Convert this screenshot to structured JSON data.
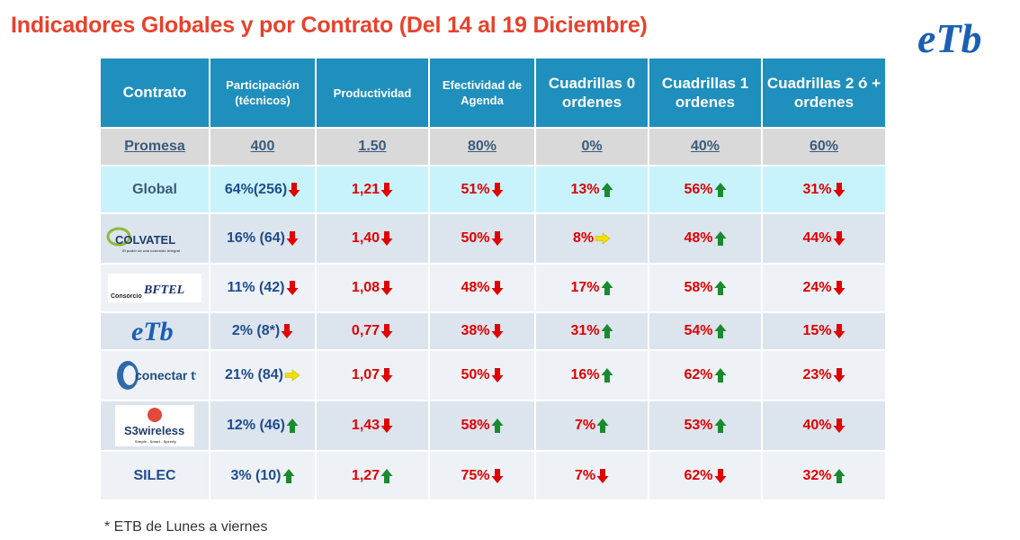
{
  "title": "Indicadores Globales y por Contrato (Del 14 al 19 Diciembre)",
  "brand_logo": "eTb",
  "headers": [
    "Contrato",
    "Participación (técnicos)",
    "Productividad",
    "Efectividad de Agenda",
    "Cuadrillas 0 ordenes",
    "Cuadrillas 1 ordenes",
    "Cuadrillas 2 ó + ordenes"
  ],
  "promesa": [
    "Promesa",
    "400",
    "1.50",
    "80%",
    "0%",
    "40%",
    "60%"
  ],
  "rows": [
    {
      "name": "Global",
      "logo": null,
      "cells": [
        {
          "v": "64%(256)",
          "a": "down"
        },
        {
          "v": "1,21",
          "a": "down"
        },
        {
          "v": "51%",
          "a": "down"
        },
        {
          "v": "13%",
          "a": "up"
        },
        {
          "v": "56%",
          "a": "up"
        },
        {
          "v": "31%",
          "a": "down"
        }
      ]
    },
    {
      "name": "",
      "logo": "COLVATEL",
      "cells": [
        {
          "v": "16% (64)",
          "a": "down"
        },
        {
          "v": "1,40",
          "a": "down"
        },
        {
          "v": "50%",
          "a": "down"
        },
        {
          "v": "8%",
          "a": "right"
        },
        {
          "v": "48%",
          "a": "up"
        },
        {
          "v": "44%",
          "a": "down"
        }
      ]
    },
    {
      "name": "",
      "logo": "Consorcio BFTEL",
      "cells": [
        {
          "v": "11% (42)",
          "a": "down"
        },
        {
          "v": "1,08",
          "a": "down"
        },
        {
          "v": "48%",
          "a": "down"
        },
        {
          "v": "17%",
          "a": "up"
        },
        {
          "v": "58%",
          "a": "up"
        },
        {
          "v": "24%",
          "a": "down"
        }
      ]
    },
    {
      "name": "",
      "logo": "eTb",
      "cells": [
        {
          "v": "2% (8*)",
          "a": "down"
        },
        {
          "v": "0,77",
          "a": "down"
        },
        {
          "v": "38%",
          "a": "down"
        },
        {
          "v": "31%",
          "a": "up"
        },
        {
          "v": "54%",
          "a": "up"
        },
        {
          "v": "15%",
          "a": "down"
        }
      ]
    },
    {
      "name": "",
      "logo": "conectar tv",
      "cells": [
        {
          "v": "21% (84)",
          "a": "right"
        },
        {
          "v": "1,07",
          "a": "down"
        },
        {
          "v": "50%",
          "a": "down"
        },
        {
          "v": "16%",
          "a": "up"
        },
        {
          "v": "62%",
          "a": "up"
        },
        {
          "v": "23%",
          "a": "down"
        }
      ]
    },
    {
      "name": "",
      "logo": "S3wireless",
      "cells": [
        {
          "v": "12% (46)",
          "a": "up"
        },
        {
          "v": "1,43",
          "a": "down"
        },
        {
          "v": "58%",
          "a": "up"
        },
        {
          "v": "7%",
          "a": "up"
        },
        {
          "v": "53%",
          "a": "up"
        },
        {
          "v": "40%",
          "a": "down"
        }
      ]
    },
    {
      "name": "SILEC",
      "logo": null,
      "cells": [
        {
          "v": "3% (10)",
          "a": "up"
        },
        {
          "v": "1,27",
          "a": "up"
        },
        {
          "v": "75%",
          "a": "down"
        },
        {
          "v": "7%",
          "a": "down"
        },
        {
          "v": "62%",
          "a": "down"
        },
        {
          "v": "32%",
          "a": "up"
        }
      ]
    }
  ],
  "logo_text": {
    "colvatel": "COLVATEL",
    "colvatel_sub": "El poder de una conexión integral",
    "bftel_prefix": "Consorcio",
    "bftel": "BFTEL",
    "etb": "eTb",
    "conectar": "conectar tv",
    "s3": "S3wireless",
    "s3_sub": "Simple - Smart - Speedy"
  },
  "note": "* ETB de Lunes a viernes",
  "colors": {
    "title": "#e8412c",
    "header": "#1f8fbd",
    "down": "#e00000",
    "up": "#1a8a2e",
    "right": "#f0e000"
  }
}
